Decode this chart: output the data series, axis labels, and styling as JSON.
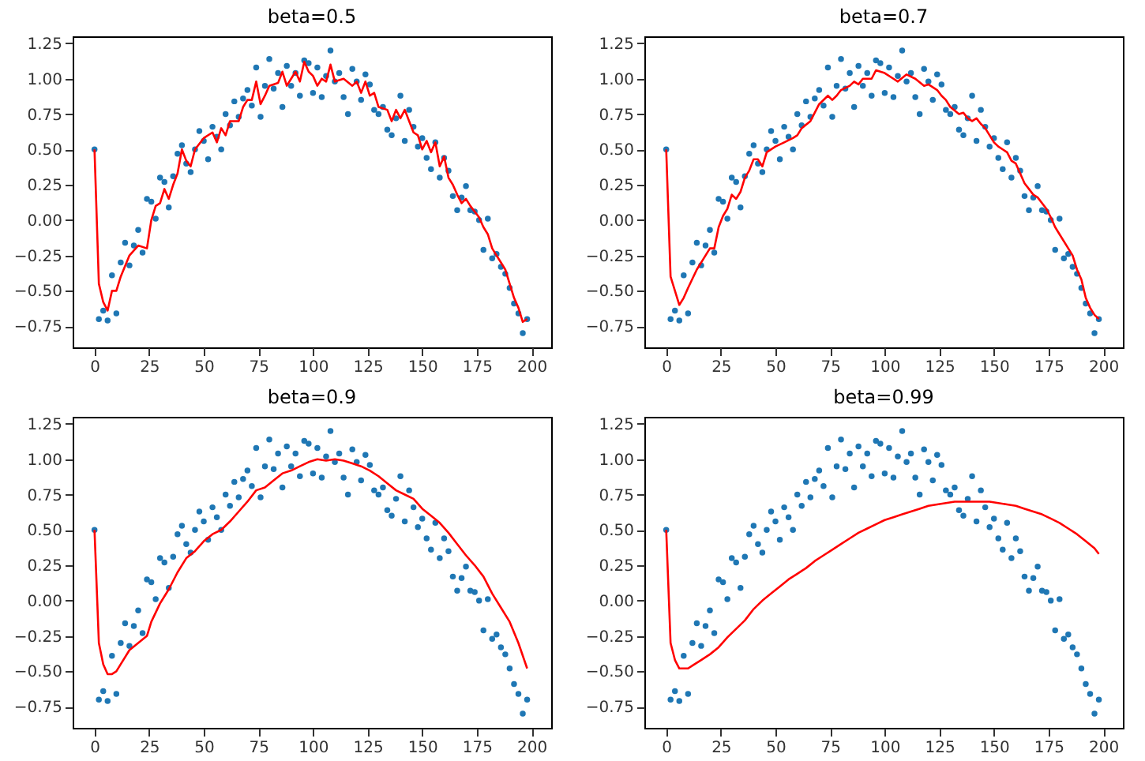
{
  "chart_data": [
    {
      "type": "scatter",
      "title": "beta=0.5",
      "xlim": [
        -10,
        209
      ],
      "ylim": [
        -0.9,
        1.3
      ],
      "xticks": [
        0,
        25,
        50,
        75,
        100,
        125,
        150,
        175,
        200
      ],
      "yticks": [
        {
          "value": -0.75,
          "label": "−0.75"
        },
        {
          "value": -0.5,
          "label": "−0.50"
        },
        {
          "value": -0.25,
          "label": "−0.25"
        },
        {
          "value": 0,
          "label": "0.00"
        },
        {
          "value": 0.25,
          "label": "0.25"
        },
        {
          "value": 0.5,
          "label": "0.50"
        },
        {
          "value": 0.75,
          "label": "0.75"
        },
        {
          "value": 1,
          "label": "1.00"
        },
        {
          "value": 1.25,
          "label": "1.25"
        }
      ],
      "series": [
        {
          "marker": "circle",
          "color": "#1f77b4",
          "x": [
            0,
            2,
            4,
            6,
            8,
            10,
            12,
            14,
            16,
            18,
            20,
            22,
            24,
            26,
            28,
            30,
            32,
            34,
            36,
            38,
            40,
            42,
            44,
            46,
            48,
            50,
            52,
            54,
            56,
            58,
            60,
            62,
            64,
            66,
            68,
            70,
            72,
            74,
            76,
            78,
            80,
            82,
            84,
            86,
            88,
            90,
            92,
            94,
            96,
            98,
            100,
            102,
            104,
            106,
            108,
            110,
            112,
            114,
            116,
            118,
            120,
            122,
            124,
            126,
            128,
            130,
            132,
            134,
            136,
            138,
            140,
            142,
            144,
            146,
            148,
            150,
            152,
            154,
            156,
            158,
            160,
            162,
            164,
            166,
            168,
            170,
            172,
            174,
            176,
            178,
            180,
            182,
            184,
            186,
            188,
            190,
            192,
            194,
            196,
            198
          ],
          "values": [
            0.5,
            -0.7,
            -0.64,
            -0.71,
            -0.39,
            -0.66,
            -0.3,
            -0.16,
            -0.32,
            -0.18,
            -0.07,
            -0.23,
            0.15,
            0.13,
            0.01,
            0.3,
            0.27,
            0.09,
            0.31,
            0.47,
            0.53,
            0.4,
            0.34,
            0.5,
            0.63,
            0.56,
            0.43,
            0.66,
            0.59,
            0.5,
            0.75,
            0.67,
            0.84,
            0.73,
            0.86,
            0.92,
            0.81,
            1.08,
            0.73,
            0.95,
            1.14,
            0.93,
            1.04,
            0.8,
            1.09,
            0.95,
            1.04,
            0.88,
            1.13,
            1.11,
            0.9,
            1.08,
            0.87,
            1.02,
            1.2,
            0.98,
            1.04,
            0.87,
            0.75,
            1.07,
            0.98,
            0.85,
            1.03,
            0.96,
            0.78,
            0.75,
            0.8,
            0.64,
            0.6,
            0.72,
            0.88,
            0.56,
            0.78,
            0.66,
            0.52,
            0.58,
            0.44,
            0.36,
            0.55,
            0.3,
            0.44,
            0.35,
            0.17,
            0.07,
            0.16,
            0.24,
            0.07,
            0.06,
            0,
            -0.21,
            0.01,
            -0.27,
            -0.24,
            -0.33,
            -0.38,
            -0.48,
            -0.59,
            -0.66,
            -0.8,
            -0.7
          ]
        },
        {
          "type": "line",
          "color": "#ff0000",
          "x": [
            0,
            2,
            4,
            6,
            8,
            10,
            12,
            16,
            20,
            24,
            26,
            28,
            30,
            32,
            34,
            36,
            38,
            40,
            42,
            44,
            46,
            50,
            54,
            56,
            58,
            60,
            62,
            66,
            68,
            70,
            72,
            74,
            76,
            78,
            80,
            84,
            86,
            88,
            90,
            92,
            94,
            96,
            98,
            100,
            102,
            104,
            106,
            108,
            110,
            114,
            118,
            120,
            122,
            124,
            126,
            128,
            130,
            134,
            136,
            138,
            140,
            142,
            144,
            146,
            148,
            150,
            152,
            154,
            156,
            158,
            160,
            162,
            164,
            166,
            168,
            170,
            172,
            176,
            178,
            180,
            182,
            184,
            186,
            188,
            190,
            192,
            194,
            196,
            198
          ],
          "values": [
            0.5,
            -0.45,
            -0.58,
            -0.64,
            -0.5,
            -0.5,
            -0.4,
            -0.25,
            -0.18,
            -0.2,
            0,
            0.1,
            0.12,
            0.22,
            0.15,
            0.25,
            0.33,
            0.5,
            0.42,
            0.38,
            0.5,
            0.58,
            0.62,
            0.55,
            0.65,
            0.6,
            0.7,
            0.7,
            0.8,
            0.85,
            0.85,
            0.98,
            0.82,
            0.88,
            0.95,
            0.97,
            1.05,
            0.95,
            1,
            1.05,
            0.98,
            1.12,
            1.05,
            1.02,
            0.95,
            1,
            0.98,
            1.1,
            0.98,
            1,
            0.95,
            0.98,
            0.9,
            0.98,
            0.88,
            0.9,
            0.8,
            0.78,
            0.7,
            0.78,
            0.72,
            0.78,
            0.7,
            0.62,
            0.6,
            0.5,
            0.56,
            0.48,
            0.55,
            0.38,
            0.45,
            0.3,
            0.25,
            0.18,
            0.12,
            0.15,
            0.1,
            0.02,
            -0.05,
            -0.1,
            -0.2,
            -0.25,
            -0.3,
            -0.35,
            -0.45,
            -0.55,
            -0.62,
            -0.72,
            -0.7
          ]
        }
      ]
    },
    {
      "type": "scatter",
      "title": "beta=0.7",
      "xlim": [
        -10,
        209
      ],
      "ylim": [
        -0.9,
        1.3
      ],
      "xticks": [
        0,
        25,
        50,
        75,
        100,
        125,
        150,
        175,
        200
      ],
      "yticks": [
        {
          "value": -0.75,
          "label": "−0.75"
        },
        {
          "value": -0.5,
          "label": "−0.50"
        },
        {
          "value": -0.25,
          "label": "−0.25"
        },
        {
          "value": 0,
          "label": "0.00"
        },
        {
          "value": 0.25,
          "label": "0.25"
        },
        {
          "value": 0.5,
          "label": "0.50"
        },
        {
          "value": 0.75,
          "label": "0.75"
        },
        {
          "value": 1,
          "label": "1.00"
        },
        {
          "value": 1.25,
          "label": "1.25"
        }
      ],
      "series": [
        {
          "marker": "circle",
          "color": "#1f77b4",
          "x": [
            0,
            2,
            4,
            6,
            8,
            10,
            12,
            14,
            16,
            18,
            20,
            22,
            24,
            26,
            28,
            30,
            32,
            34,
            36,
            38,
            40,
            42,
            44,
            46,
            48,
            50,
            52,
            54,
            56,
            58,
            60,
            62,
            64,
            66,
            68,
            70,
            72,
            74,
            76,
            78,
            80,
            82,
            84,
            86,
            88,
            90,
            92,
            94,
            96,
            98,
            100,
            102,
            104,
            106,
            108,
            110,
            112,
            114,
            116,
            118,
            120,
            122,
            124,
            126,
            128,
            130,
            132,
            134,
            136,
            138,
            140,
            142,
            144,
            146,
            148,
            150,
            152,
            154,
            156,
            158,
            160,
            162,
            164,
            166,
            168,
            170,
            172,
            174,
            176,
            178,
            180,
            182,
            184,
            186,
            188,
            190,
            192,
            194,
            196,
            198
          ],
          "values": [
            0.5,
            -0.7,
            -0.64,
            -0.71,
            -0.39,
            -0.66,
            -0.3,
            -0.16,
            -0.32,
            -0.18,
            -0.07,
            -0.23,
            0.15,
            0.13,
            0.01,
            0.3,
            0.27,
            0.09,
            0.31,
            0.47,
            0.53,
            0.4,
            0.34,
            0.5,
            0.63,
            0.56,
            0.43,
            0.66,
            0.59,
            0.5,
            0.75,
            0.67,
            0.84,
            0.73,
            0.86,
            0.92,
            0.81,
            1.08,
            0.73,
            0.95,
            1.14,
            0.93,
            1.04,
            0.8,
            1.09,
            0.95,
            1.04,
            0.88,
            1.13,
            1.11,
            0.9,
            1.08,
            0.87,
            1.02,
            1.2,
            0.98,
            1.04,
            0.87,
            0.75,
            1.07,
            0.98,
            0.85,
            1.03,
            0.96,
            0.78,
            0.75,
            0.8,
            0.64,
            0.6,
            0.72,
            0.88,
            0.56,
            0.78,
            0.66,
            0.52,
            0.58,
            0.44,
            0.36,
            0.55,
            0.3,
            0.44,
            0.35,
            0.17,
            0.07,
            0.16,
            0.24,
            0.07,
            0.06,
            0,
            -0.21,
            0.01,
            -0.27,
            -0.24,
            -0.33,
            -0.38,
            -0.48,
            -0.59,
            -0.66,
            -0.8,
            -0.7
          ]
        },
        {
          "type": "line",
          "color": "#ff0000",
          "x": [
            0,
            2,
            4,
            6,
            8,
            10,
            14,
            18,
            20,
            22,
            24,
            26,
            28,
            30,
            32,
            34,
            36,
            38,
            40,
            42,
            44,
            46,
            50,
            54,
            58,
            60,
            62,
            66,
            70,
            74,
            76,
            78,
            80,
            84,
            86,
            88,
            90,
            94,
            96,
            100,
            104,
            106,
            110,
            114,
            118,
            120,
            124,
            126,
            128,
            130,
            134,
            136,
            138,
            140,
            142,
            144,
            146,
            148,
            150,
            152,
            154,
            156,
            158,
            160,
            162,
            164,
            166,
            168,
            170,
            174,
            176,
            178,
            180,
            184,
            186,
            188,
            190,
            192,
            194,
            196,
            198
          ],
          "values": [
            0.5,
            -0.4,
            -0.5,
            -0.6,
            -0.55,
            -0.48,
            -0.35,
            -0.25,
            -0.2,
            -0.2,
            -0.05,
            0.03,
            0.08,
            0.18,
            0.15,
            0.2,
            0.3,
            0.35,
            0.43,
            0.43,
            0.38,
            0.48,
            0.52,
            0.55,
            0.58,
            0.6,
            0.65,
            0.7,
            0.82,
            0.88,
            0.85,
            0.88,
            0.92,
            0.95,
            0.98,
            0.96,
            1,
            1,
            1.06,
            1.04,
            1,
            0.98,
            1.03,
            1,
            0.95,
            0.96,
            0.92,
            0.88,
            0.85,
            0.8,
            0.75,
            0.76,
            0.72,
            0.7,
            0.72,
            0.68,
            0.65,
            0.6,
            0.55,
            0.52,
            0.5,
            0.48,
            0.42,
            0.4,
            0.33,
            0.26,
            0.22,
            0.18,
            0.16,
            0.08,
            0.02,
            -0.05,
            -0.1,
            -0.2,
            -0.25,
            -0.35,
            -0.42,
            -0.55,
            -0.62,
            -0.67,
            -0.7
          ]
        }
      ]
    },
    {
      "type": "scatter",
      "title": "beta=0.9",
      "xlim": [
        -10,
        209
      ],
      "ylim": [
        -0.9,
        1.3
      ],
      "xticks": [
        0,
        25,
        50,
        75,
        100,
        125,
        150,
        175,
        200
      ],
      "yticks": [
        {
          "value": -0.75,
          "label": "−0.75"
        },
        {
          "value": -0.5,
          "label": "−0.50"
        },
        {
          "value": -0.25,
          "label": "−0.25"
        },
        {
          "value": 0,
          "label": "0.00"
        },
        {
          "value": 0.25,
          "label": "0.25"
        },
        {
          "value": 0.5,
          "label": "0.50"
        },
        {
          "value": 0.75,
          "label": "0.75"
        },
        {
          "value": 1,
          "label": "1.00"
        },
        {
          "value": 1.25,
          "label": "1.25"
        }
      ],
      "series": [
        {
          "marker": "circle",
          "color": "#1f77b4",
          "x": [
            0,
            2,
            4,
            6,
            8,
            10,
            12,
            14,
            16,
            18,
            20,
            22,
            24,
            26,
            28,
            30,
            32,
            34,
            36,
            38,
            40,
            42,
            44,
            46,
            48,
            50,
            52,
            54,
            56,
            58,
            60,
            62,
            64,
            66,
            68,
            70,
            72,
            74,
            76,
            78,
            80,
            82,
            84,
            86,
            88,
            90,
            92,
            94,
            96,
            98,
            100,
            102,
            104,
            106,
            108,
            110,
            112,
            114,
            116,
            118,
            120,
            122,
            124,
            126,
            128,
            130,
            132,
            134,
            136,
            138,
            140,
            142,
            144,
            146,
            148,
            150,
            152,
            154,
            156,
            158,
            160,
            162,
            164,
            166,
            168,
            170,
            172,
            174,
            176,
            178,
            180,
            182,
            184,
            186,
            188,
            190,
            192,
            194,
            196,
            198
          ],
          "values": [
            0.5,
            -0.7,
            -0.64,
            -0.71,
            -0.39,
            -0.66,
            -0.3,
            -0.16,
            -0.32,
            -0.18,
            -0.07,
            -0.23,
            0.15,
            0.13,
            0.01,
            0.3,
            0.27,
            0.09,
            0.31,
            0.47,
            0.53,
            0.4,
            0.34,
            0.5,
            0.63,
            0.56,
            0.43,
            0.66,
            0.59,
            0.5,
            0.75,
            0.67,
            0.84,
            0.73,
            0.86,
            0.92,
            0.81,
            1.08,
            0.73,
            0.95,
            1.14,
            0.93,
            1.04,
            0.8,
            1.09,
            0.95,
            1.04,
            0.88,
            1.13,
            1.11,
            0.9,
            1.08,
            0.87,
            1.02,
            1.2,
            0.98,
            1.04,
            0.87,
            0.75,
            1.07,
            0.98,
            0.85,
            1.03,
            0.96,
            0.78,
            0.75,
            0.8,
            0.64,
            0.6,
            0.72,
            0.88,
            0.56,
            0.78,
            0.66,
            0.52,
            0.58,
            0.44,
            0.36,
            0.55,
            0.3,
            0.44,
            0.35,
            0.17,
            0.07,
            0.16,
            0.24,
            0.07,
            0.06,
            0,
            -0.21,
            0.01,
            -0.27,
            -0.24,
            -0.33,
            -0.38,
            -0.48,
            -0.59,
            -0.66,
            -0.8,
            -0.7
          ]
        },
        {
          "type": "line",
          "color": "#ff0000",
          "x": [
            0,
            2,
            4,
            6,
            8,
            10,
            12,
            16,
            20,
            24,
            26,
            30,
            34,
            38,
            42,
            46,
            50,
            54,
            58,
            62,
            66,
            70,
            74,
            78,
            82,
            86,
            90,
            94,
            98,
            102,
            106,
            110,
            114,
            118,
            122,
            126,
            130,
            134,
            138,
            142,
            146,
            150,
            154,
            158,
            162,
            166,
            170,
            174,
            178,
            182,
            186,
            190,
            194,
            198
          ],
          "values": [
            0.5,
            -0.3,
            -0.45,
            -0.52,
            -0.52,
            -0.5,
            -0.45,
            -0.35,
            -0.3,
            -0.25,
            -0.15,
            -0.02,
            0.08,
            0.2,
            0.3,
            0.35,
            0.42,
            0.47,
            0.5,
            0.56,
            0.63,
            0.7,
            0.78,
            0.8,
            0.85,
            0.9,
            0.92,
            0.95,
            0.98,
            1,
            0.99,
            1,
            0.99,
            0.97,
            0.95,
            0.92,
            0.88,
            0.83,
            0.78,
            0.75,
            0.72,
            0.65,
            0.6,
            0.55,
            0.48,
            0.4,
            0.32,
            0.25,
            0.17,
            0.05,
            -0.05,
            -0.15,
            -0.3,
            -0.48
          ]
        }
      ]
    },
    {
      "type": "scatter",
      "title": "beta=0.99",
      "xlim": [
        -10,
        209
      ],
      "ylim": [
        -0.9,
        1.3
      ],
      "xticks": [
        0,
        25,
        50,
        75,
        100,
        125,
        150,
        175,
        200
      ],
      "yticks": [
        {
          "value": -0.75,
          "label": "−0.75"
        },
        {
          "value": -0.5,
          "label": "−0.50"
        },
        {
          "value": -0.25,
          "label": "−0.25"
        },
        {
          "value": 0,
          "label": "0.00"
        },
        {
          "value": 0.25,
          "label": "0.25"
        },
        {
          "value": 0.5,
          "label": "0.50"
        },
        {
          "value": 0.75,
          "label": "0.75"
        },
        {
          "value": 1,
          "label": "1.00"
        },
        {
          "value": 1.25,
          "label": "1.25"
        }
      ],
      "series": [
        {
          "marker": "circle",
          "color": "#1f77b4",
          "x": [
            0,
            2,
            4,
            6,
            8,
            10,
            12,
            14,
            16,
            18,
            20,
            22,
            24,
            26,
            28,
            30,
            32,
            34,
            36,
            38,
            40,
            42,
            44,
            46,
            48,
            50,
            52,
            54,
            56,
            58,
            60,
            62,
            64,
            66,
            68,
            70,
            72,
            74,
            76,
            78,
            80,
            82,
            84,
            86,
            88,
            90,
            92,
            94,
            96,
            98,
            100,
            102,
            104,
            106,
            108,
            110,
            112,
            114,
            116,
            118,
            120,
            122,
            124,
            126,
            128,
            130,
            132,
            134,
            136,
            138,
            140,
            142,
            144,
            146,
            148,
            150,
            152,
            154,
            156,
            158,
            160,
            162,
            164,
            166,
            168,
            170,
            172,
            174,
            176,
            178,
            180,
            182,
            184,
            186,
            188,
            190,
            192,
            194,
            196,
            198
          ],
          "values": [
            0.5,
            -0.7,
            -0.64,
            -0.71,
            -0.39,
            -0.66,
            -0.3,
            -0.16,
            -0.32,
            -0.18,
            -0.07,
            -0.23,
            0.15,
            0.13,
            0.01,
            0.3,
            0.27,
            0.09,
            0.31,
            0.47,
            0.53,
            0.4,
            0.34,
            0.5,
            0.63,
            0.56,
            0.43,
            0.66,
            0.59,
            0.5,
            0.75,
            0.67,
            0.84,
            0.73,
            0.86,
            0.92,
            0.81,
            1.08,
            0.73,
            0.95,
            1.14,
            0.93,
            1.04,
            0.8,
            1.09,
            0.95,
            1.04,
            0.88,
            1.13,
            1.11,
            0.9,
            1.08,
            0.87,
            1.02,
            1.2,
            0.98,
            1.04,
            0.87,
            0.75,
            1.07,
            0.98,
            0.85,
            1.03,
            0.96,
            0.78,
            0.75,
            0.8,
            0.64,
            0.6,
            0.72,
            0.88,
            0.56,
            0.78,
            0.66,
            0.52,
            0.58,
            0.44,
            0.36,
            0.55,
            0.3,
            0.44,
            0.35,
            0.17,
            0.07,
            0.16,
            0.24,
            0.07,
            0.06,
            0,
            -0.21,
            0.01,
            -0.27,
            -0.24,
            -0.33,
            -0.38,
            -0.48,
            -0.59,
            -0.66,
            -0.8,
            -0.7
          ]
        },
        {
          "type": "line",
          "color": "#ff0000",
          "x": [
            0,
            2,
            4,
            6,
            8,
            10,
            12,
            16,
            20,
            24,
            28,
            32,
            36,
            40,
            44,
            48,
            52,
            56,
            60,
            64,
            68,
            72,
            76,
            80,
            84,
            88,
            92,
            96,
            100,
            104,
            108,
            112,
            116,
            120,
            124,
            128,
            132,
            136,
            140,
            144,
            148,
            152,
            156,
            160,
            164,
            168,
            172,
            176,
            180,
            184,
            188,
            192,
            196,
            198
          ],
          "values": [
            0.5,
            -0.3,
            -0.42,
            -0.48,
            -0.48,
            -0.48,
            -0.46,
            -0.42,
            -0.38,
            -0.33,
            -0.26,
            -0.2,
            -0.14,
            -0.06,
            0,
            0.05,
            0.1,
            0.15,
            0.19,
            0.23,
            0.28,
            0.32,
            0.36,
            0.4,
            0.44,
            0.48,
            0.51,
            0.54,
            0.57,
            0.59,
            0.61,
            0.63,
            0.65,
            0.67,
            0.68,
            0.69,
            0.7,
            0.7,
            0.7,
            0.7,
            0.7,
            0.69,
            0.68,
            0.67,
            0.65,
            0.63,
            0.61,
            0.58,
            0.55,
            0.51,
            0.47,
            0.42,
            0.37,
            0.33
          ]
        }
      ]
    }
  ]
}
